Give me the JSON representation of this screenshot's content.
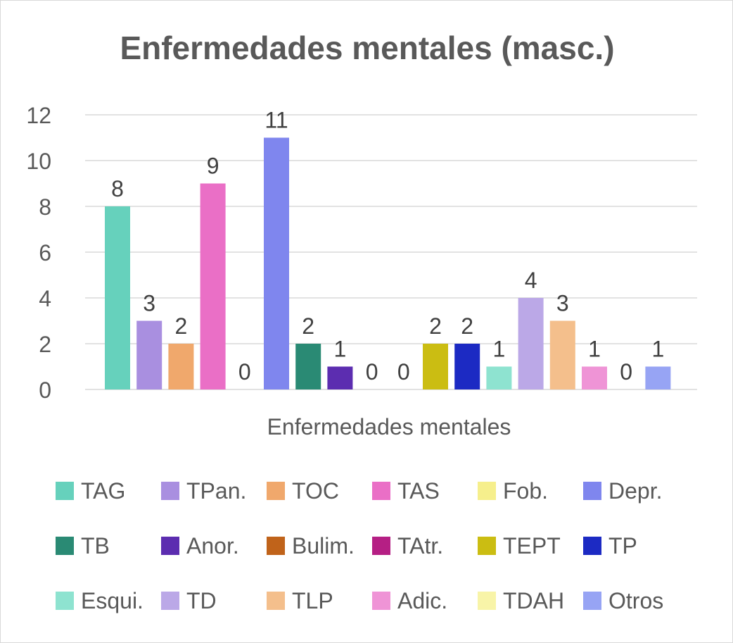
{
  "chart_data": {
    "type": "bar",
    "title": "Enfermedades mentales (masc.)",
    "xlabel": "Enfermedades mentales",
    "ylabel": "",
    "ylim": [
      0,
      12
    ],
    "yticks": [
      "0",
      "2",
      "4",
      "6",
      "8",
      "10",
      "12"
    ],
    "grid": true,
    "legend_position": "bottom",
    "categories": [
      "Enfermedades mentales"
    ],
    "series": [
      {
        "name": "TAG",
        "values": [
          8
        ],
        "color": "#66d1bc"
      },
      {
        "name": "TPan.",
        "values": [
          3
        ],
        "color": "#a98fe0"
      },
      {
        "name": "TOC",
        "values": [
          2
        ],
        "color": "#f0a86c"
      },
      {
        "name": "TAS",
        "values": [
          9
        ],
        "color": "#ea6fc6"
      },
      {
        "name": "Fob.",
        "values": [
          0
        ],
        "color": "#f6ef8c"
      },
      {
        "name": "Depr.",
        "values": [
          11
        ],
        "color": "#7f86ee"
      },
      {
        "name": "TB",
        "values": [
          2
        ],
        "color": "#2a8a74"
      },
      {
        "name": "Anor.",
        "values": [
          1
        ],
        "color": "#5c2db0"
      },
      {
        "name": "Bulim.",
        "values": [
          0
        ],
        "color": "#c0631a"
      },
      {
        "name": "TAtr.",
        "values": [
          0
        ],
        "color": "#b51f84"
      },
      {
        "name": "TEPT",
        "values": [
          2
        ],
        "color": "#cbbd12"
      },
      {
        "name": "TP",
        "values": [
          2
        ],
        "color": "#1c2ac3"
      },
      {
        "name": "Esqui.",
        "values": [
          1
        ],
        "color": "#8ee3d0"
      },
      {
        "name": "TD",
        "values": [
          4
        ],
        "color": "#bba8e7"
      },
      {
        "name": "TLP",
        "values": [
          3
        ],
        "color": "#f4bf8c"
      },
      {
        "name": "Adic.",
        "values": [
          1
        ],
        "color": "#ef94d6"
      },
      {
        "name": "TDAH",
        "values": [
          0
        ],
        "color": "#f8f4a8"
      },
      {
        "name": "Otros",
        "values": [
          1
        ],
        "color": "#97a4f4"
      }
    ]
  }
}
